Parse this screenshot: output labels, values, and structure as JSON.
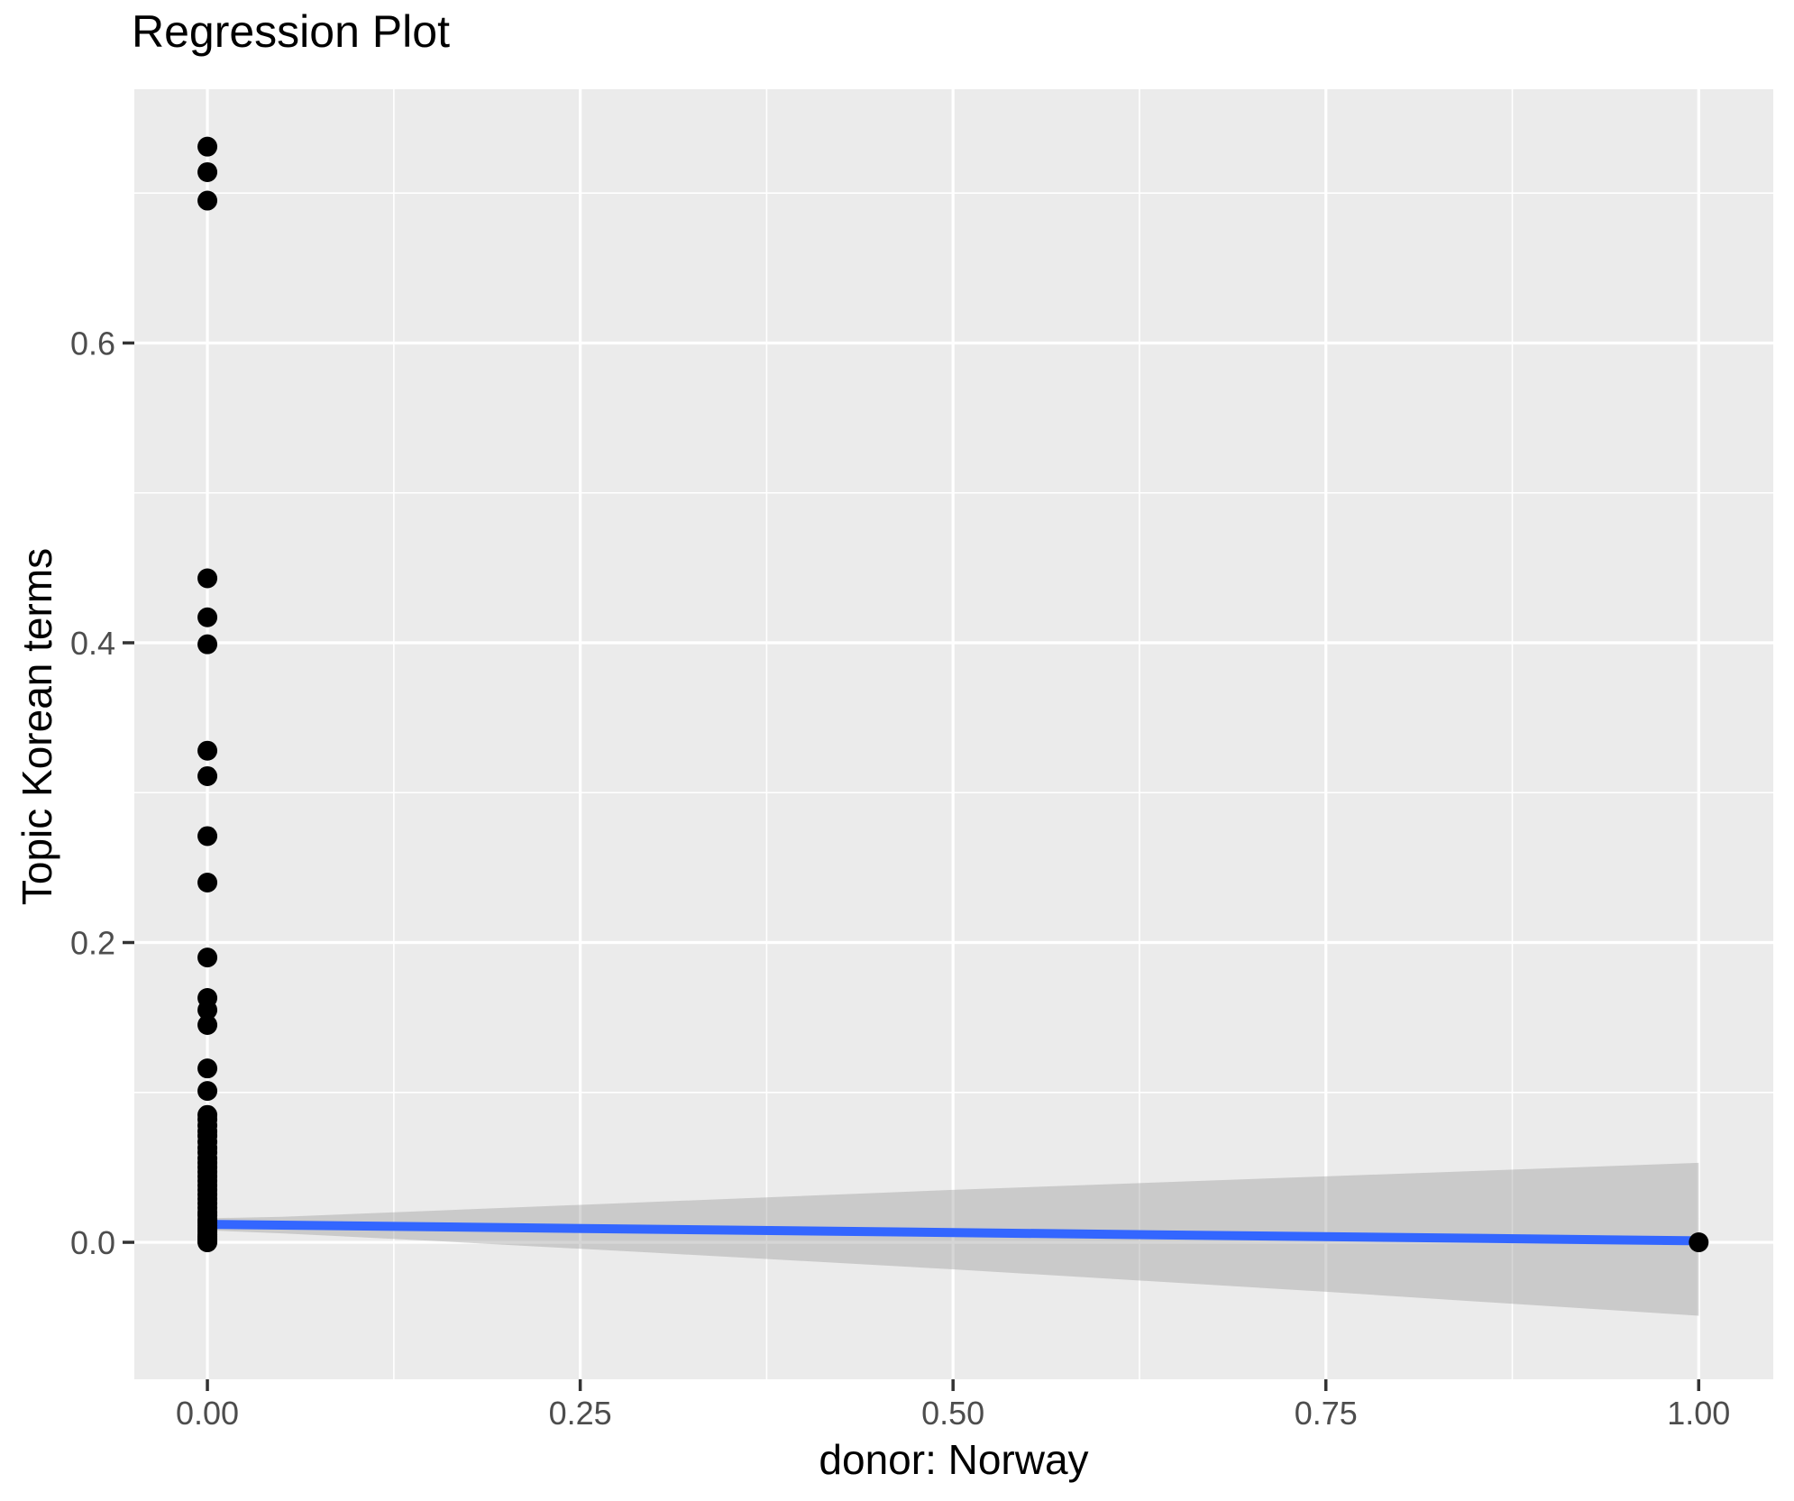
{
  "page": {
    "background": "#FFFFFF"
  },
  "chart_data": {
    "type": "scatter",
    "title": "Regression Plot",
    "xlabel": "donor: Norway",
    "ylabel": "Topic Korean terms",
    "xlim": [
      -0.049,
      1.05
    ],
    "ylim": [
      -0.0914,
      0.7693
    ],
    "grid": true,
    "legend_position": "none",
    "x_major_ticks": [
      0,
      0.25,
      0.5,
      0.75,
      1
    ],
    "x_tick_labels": [
      "0.00",
      "0.25",
      "0.50",
      "0.75",
      "1.00"
    ],
    "x_minor_ticks": [
      0.125,
      0.375,
      0.625,
      0.875
    ],
    "y_major_ticks": [
      0,
      0.2,
      0.4,
      0.6
    ],
    "y_tick_labels": [
      "0.0",
      "0.2",
      "0.4",
      "0.6"
    ],
    "y_minor_ticks": [
      0.1,
      0.3,
      0.5,
      0.7
    ],
    "series": [
      {
        "name": "observations",
        "type": "points",
        "color": "#000000",
        "points": [
          [
            0,
            0.731
          ],
          [
            0,
            0.714
          ],
          [
            0,
            0.695
          ],
          [
            0,
            0.443
          ],
          [
            0,
            0.417
          ],
          [
            0,
            0.399
          ],
          [
            0,
            0.328
          ],
          [
            0,
            0.311
          ],
          [
            0,
            0.271
          ],
          [
            0,
            0.24
          ],
          [
            0,
            0.19
          ],
          [
            0,
            0.163
          ],
          [
            0,
            0.155
          ],
          [
            0,
            0.145
          ],
          [
            0,
            0.116
          ],
          [
            0,
            0.101
          ],
          [
            0,
            0.085
          ],
          [
            0,
            0.082
          ],
          [
            0,
            0.078
          ],
          [
            0,
            0.074
          ],
          [
            0,
            0.071
          ],
          [
            0,
            0.067
          ],
          [
            0,
            0.063
          ],
          [
            0,
            0.06
          ],
          [
            0,
            0.056
          ],
          [
            0,
            0.053
          ],
          [
            0,
            0.05
          ],
          [
            0,
            0.047
          ],
          [
            0,
            0.044
          ],
          [
            0,
            0.041
          ],
          [
            0,
            0.038
          ],
          [
            0,
            0.035
          ],
          [
            0,
            0.032
          ],
          [
            0,
            0.029
          ],
          [
            0,
            0.026
          ],
          [
            0,
            0.023
          ],
          [
            0,
            0.02
          ],
          [
            0,
            0.018
          ],
          [
            0,
            0.015
          ],
          [
            0,
            0.013
          ],
          [
            0,
            0.011
          ],
          [
            0,
            0.009
          ],
          [
            0,
            0.007
          ],
          [
            0,
            0.005
          ],
          [
            0,
            0.004
          ],
          [
            0,
            0.003
          ],
          [
            0,
            0.002
          ],
          [
            0,
            0.001
          ],
          [
            0,
            0.0005
          ],
          [
            0,
            0
          ],
          [
            1,
            0
          ]
        ]
      }
    ],
    "regression_line": {
      "color": "#3366FF",
      "x": [
        0,
        1
      ],
      "y": [
        0.012,
        0.001
      ]
    },
    "confidence_band": {
      "color": "#999999",
      "opacity": 0.4,
      "x": [
        0,
        0.05,
        0.15,
        0.3,
        0.5,
        0.75,
        1
      ],
      "upper": [
        0.016,
        0.017,
        0.021,
        0.027,
        0.035,
        0.044,
        0.053
      ],
      "lower": [
        0.008,
        0.006,
        0.001,
        -0.007,
        -0.018,
        -0.033,
        -0.049
      ]
    },
    "colors": {
      "panel_bg": "#EBEBEB",
      "grid": "#FFFFFF",
      "tick_text": "#4D4D4D",
      "tick_mark": "#333333",
      "point": "#000000",
      "line": "#3366FF",
      "band_effective": "#CACACA"
    }
  }
}
